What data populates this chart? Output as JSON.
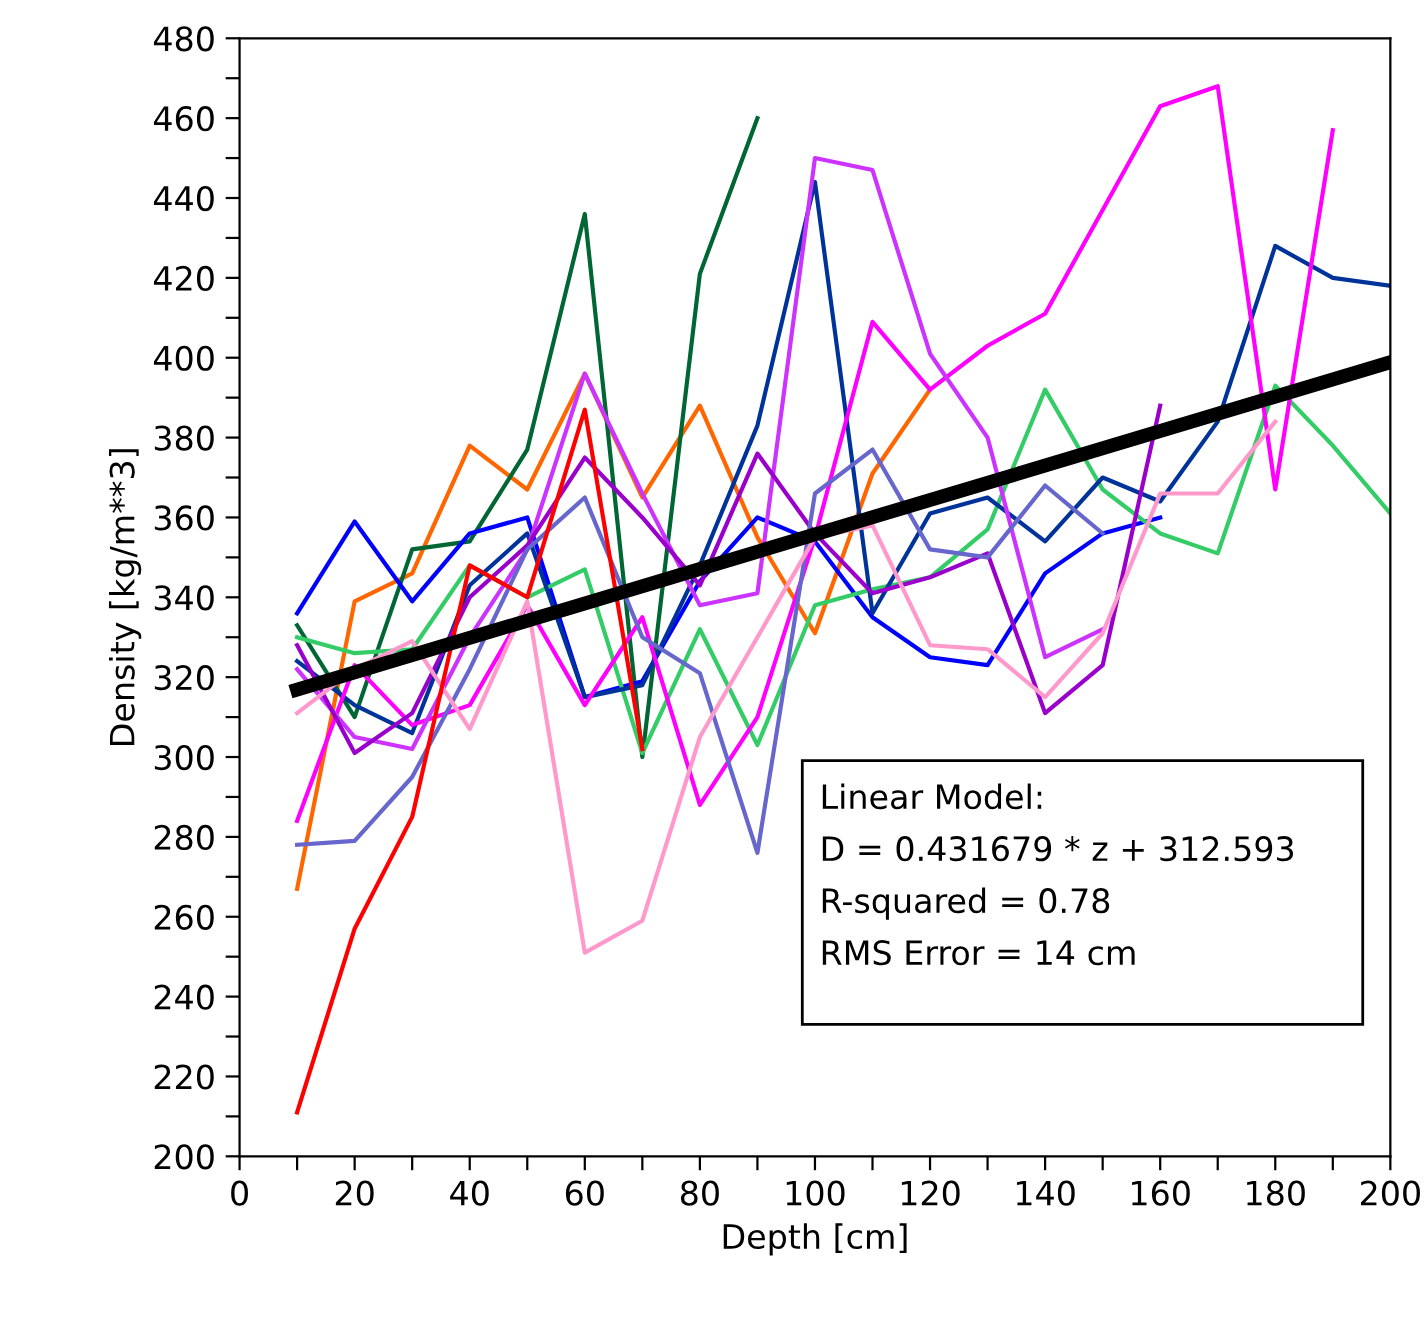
{
  "chart_data": {
    "type": "line",
    "xlabel": "Depth [cm]",
    "ylabel": "Density [kg/m**3]",
    "xlim": [
      0,
      200
    ],
    "ylim": [
      200,
      480
    ],
    "xticks": [
      0,
      {
        "value": 10,
        "label": null
      },
      20,
      {
        "value": 30,
        "label": null
      },
      40,
      {
        "value": 50,
        "label": null
      },
      60,
      {
        "value": 70,
        "label": null
      },
      80,
      {
        "value": 90,
        "label": null
      },
      100,
      {
        "value": 110,
        "label": null
      },
      120,
      {
        "value": 130,
        "label": null
      },
      140,
      {
        "value": 150,
        "label": null
      },
      160,
      {
        "value": 170,
        "label": null
      },
      180,
      {
        "value": 190,
        "label": null
      },
      200
    ],
    "yticks": [
      200,
      {
        "value": 210,
        "label": null
      },
      220,
      {
        "value": 230,
        "label": null
      },
      240,
      {
        "value": 250,
        "label": null
      },
      260,
      {
        "value": 270,
        "label": null
      },
      280,
      {
        "value": 290,
        "label": null
      },
      300,
      {
        "value": 310,
        "label": null
      },
      320,
      {
        "value": 330,
        "label": null
      },
      340,
      {
        "value": 350,
        "label": null
      },
      360,
      {
        "value": 370,
        "label": null
      },
      380,
      {
        "value": 390,
        "label": null
      },
      400,
      {
        "value": 410,
        "label": null
      },
      420,
      {
        "value": 430,
        "label": null
      },
      440,
      {
        "value": 450,
        "label": null
      },
      460,
      {
        "value": 470,
        "label": null
      },
      480
    ],
    "grid": false,
    "legend": false,
    "marker": "none",
    "line_style": "solid",
    "annotations": [
      "Linear Model:",
      "D = 0.431679 * z + 312.593",
      "R-squared = 0.78",
      "RMS Error = 14 cm"
    ],
    "series": [
      {
        "color": "#ff6600",
        "x": [
          10,
          20,
          30,
          40,
          50,
          60,
          70,
          80,
          90,
          100,
          110,
          120
        ],
        "values": [
          267,
          339,
          346,
          378,
          367,
          396,
          365,
          388,
          355,
          331,
          371,
          392
        ]
      },
      {
        "color": "#006633",
        "x": [
          10,
          20,
          30,
          40,
          50,
          60,
          70,
          80,
          90
        ],
        "values": [
          333,
          310,
          352,
          354,
          377,
          436,
          300,
          421,
          460
        ]
      },
      {
        "color": "#0000ff",
        "x": [
          10,
          20,
          30,
          40,
          50,
          60,
          70,
          80,
          90,
          100,
          110,
          120,
          130,
          140,
          150,
          160
        ],
        "values": [
          336,
          359,
          339,
          356,
          360,
          315,
          319,
          344,
          360,
          354,
          335,
          325,
          323,
          346,
          356,
          360
        ]
      },
      {
        "color": "#33cc66",
        "x": [
          10,
          20,
          30,
          40,
          50,
          60,
          70,
          80,
          90,
          100,
          110,
          120,
          130,
          140,
          150,
          160,
          170,
          180,
          190,
          200
        ],
        "values": [
          330,
          326,
          327,
          348,
          340,
          347,
          301,
          332,
          303,
          338,
          342,
          345,
          357,
          392,
          367,
          356,
          351,
          393,
          378,
          361
        ]
      },
      {
        "color": "#003399",
        "x": [
          10,
          20,
          30,
          40,
          50,
          60,
          70,
          80,
          90,
          100,
          110,
          120,
          130,
          140,
          150,
          160,
          170,
          180,
          190,
          200
        ],
        "values": [
          324,
          313,
          306,
          343,
          356,
          315,
          318,
          348,
          383,
          444,
          336,
          361,
          365,
          354,
          370,
          364,
          384,
          428,
          420,
          418
        ]
      },
      {
        "color": "#ff00ff",
        "x": [
          10,
          20,
          30,
          40,
          50,
          60,
          70,
          80,
          90,
          100,
          110,
          120,
          130,
          140,
          150,
          160,
          170,
          180,
          190
        ],
        "values": [
          284,
          323,
          308,
          313,
          338,
          313,
          335,
          288,
          310,
          355,
          409,
          392,
          403,
          411,
          437,
          463,
          468,
          367,
          457
        ]
      },
      {
        "color": "#cc33ff",
        "x": [
          10,
          20,
          30,
          40,
          50,
          60,
          70,
          80,
          90,
          100,
          110,
          120,
          130,
          140,
          150
        ],
        "values": [
          322,
          305,
          302,
          330,
          352,
          396,
          366,
          338,
          341,
          450,
          447,
          401,
          380,
          325,
          332
        ]
      },
      {
        "color": "#9900cc",
        "x": [
          10,
          20,
          30,
          40,
          50,
          60,
          70,
          80,
          90,
          100,
          110,
          120,
          130,
          140,
          150,
          160
        ],
        "values": [
          328,
          301,
          311,
          340,
          353,
          375,
          360,
          343,
          376,
          356,
          341,
          345,
          351,
          311,
          323,
          388
        ]
      },
      {
        "color": "#6666cc",
        "x": [
          10,
          20,
          30,
          40,
          50,
          60,
          70,
          80,
          90,
          100,
          110,
          120,
          130,
          140,
          150
        ],
        "values": [
          278,
          279,
          295,
          322,
          352,
          365,
          330,
          321,
          276,
          366,
          377,
          352,
          350,
          368,
          356
        ]
      },
      {
        "color": "#ff99cc",
        "x": [
          10,
          20,
          30,
          40,
          50,
          60,
          70,
          80,
          90,
          100,
          110,
          120,
          130,
          140,
          150,
          160,
          170,
          180
        ],
        "values": [
          311,
          322,
          329,
          307,
          339,
          251,
          259,
          305,
          330,
          355,
          358,
          328,
          327,
          315,
          331,
          366,
          366,
          384
        ]
      },
      {
        "color": "#ff0000",
        "x": [
          10,
          20,
          30,
          40,
          50,
          60,
          70
        ],
        "values": [
          211,
          257,
          285,
          348,
          340,
          387,
          302
        ]
      },
      {
        "color": "#000000",
        "x": [
          10,
          200
        ],
        "values": [
          316.9,
          398.9
        ]
      }
    ]
  }
}
